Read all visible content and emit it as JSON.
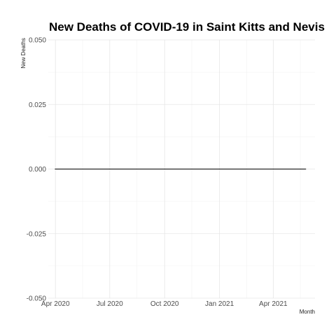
{
  "chart_data": {
    "type": "line",
    "title": "New Deaths of COVID-19 in Saint Kitts and Nevis",
    "xlabel": "Month",
    "ylabel": "New Deaths",
    "x_ticks": [
      "Apr 2020",
      "Jul 2020",
      "Oct 2020",
      "Jan 2021",
      "Apr 2021"
    ],
    "x_tick_dates": [
      "2020-04-01",
      "2020-07-01",
      "2020-10-01",
      "2021-01-01",
      "2021-04-01"
    ],
    "xlim": [
      "2020-03-20",
      "2021-06-10"
    ],
    "y_ticks": [
      -0.05,
      -0.025,
      0,
      0.025,
      0.05
    ],
    "y_tick_labels": [
      "-0.050",
      "-0.025",
      "0.000",
      "0.025",
      "0.050"
    ],
    "ylim": [
      -0.05,
      0.05
    ],
    "grid": true,
    "line_color": "#000000",
    "series": [
      {
        "x": [
          "2020-03-31",
          "2021-05-26"
        ],
        "values": [
          0,
          0
        ]
      }
    ]
  }
}
